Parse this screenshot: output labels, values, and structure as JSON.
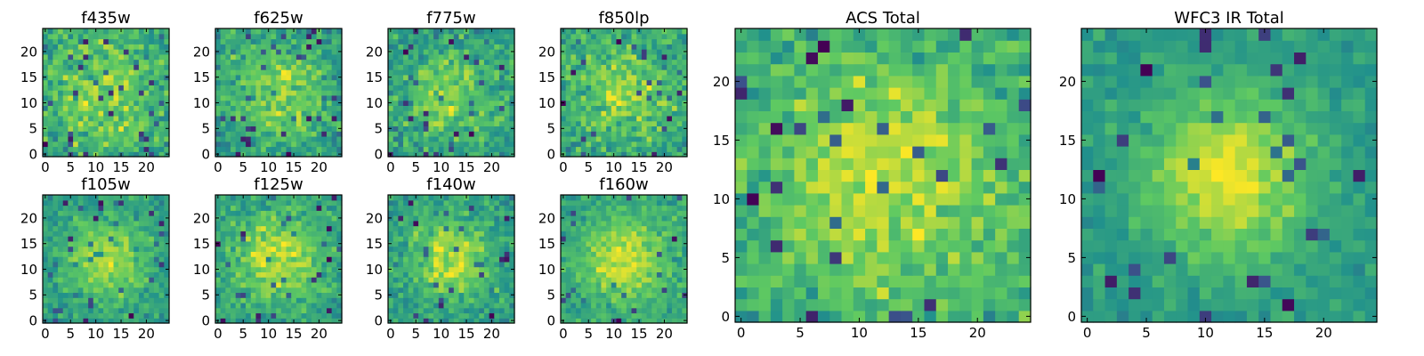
{
  "figure": {
    "background": "#ffffff"
  },
  "colormap": {
    "name": "viridis",
    "stops": [
      "#440154",
      "#3b528b",
      "#21918c",
      "#5ec962",
      "#fde725"
    ]
  },
  "chart_data": [
    {
      "type": "heatmap",
      "title": "f435w",
      "grid_size": 25,
      "xticks": [
        "0",
        "5",
        "10",
        "15",
        "20"
      ],
      "yticks": [
        "0",
        "5",
        "10",
        "15",
        "20"
      ],
      "center": [
        12,
        12
      ],
      "peak": 0.35,
      "width": 8,
      "noise": 0.55,
      "seed": 11,
      "style": "small"
    },
    {
      "type": "heatmap",
      "title": "f625w",
      "grid_size": 25,
      "xticks": [
        "0",
        "5",
        "10",
        "15",
        "20"
      ],
      "yticks": [
        "0",
        "5",
        "10",
        "15",
        "20"
      ],
      "center": [
        12,
        12
      ],
      "peak": 0.5,
      "width": 7,
      "noise": 0.55,
      "seed": 23,
      "style": "small"
    },
    {
      "type": "heatmap",
      "title": "f775w",
      "grid_size": 25,
      "xticks": [
        "0",
        "5",
        "10",
        "15",
        "20"
      ],
      "yticks": [
        "0",
        "5",
        "10",
        "15",
        "20"
      ],
      "center": [
        12,
        12
      ],
      "peak": 0.45,
      "width": 7,
      "noise": 0.55,
      "seed": 37,
      "style": "small"
    },
    {
      "type": "heatmap",
      "title": "f850lp",
      "grid_size": 25,
      "xticks": [
        "0",
        "5",
        "10",
        "15",
        "20"
      ],
      "yticks": [
        "0",
        "5",
        "10",
        "15",
        "20"
      ],
      "center": [
        12,
        12
      ],
      "peak": 0.4,
      "width": 7,
      "noise": 0.55,
      "seed": 41,
      "style": "small"
    },
    {
      "type": "heatmap",
      "title": "f105w",
      "grid_size": 25,
      "xticks": [
        "0",
        "5",
        "10",
        "15",
        "20"
      ],
      "yticks": [
        "0",
        "5",
        "10",
        "15",
        "20"
      ],
      "center": [
        12,
        12
      ],
      "peak": 0.55,
      "width": 6,
      "noise": 0.45,
      "seed": 53,
      "style": "small"
    },
    {
      "type": "heatmap",
      "title": "f125w",
      "grid_size": 25,
      "xticks": [
        "0",
        "5",
        "10",
        "15",
        "20"
      ],
      "yticks": [
        "0",
        "5",
        "10",
        "15",
        "20"
      ],
      "center": [
        12,
        12
      ],
      "peak": 0.55,
      "width": 6,
      "noise": 0.45,
      "seed": 67,
      "style": "small"
    },
    {
      "type": "heatmap",
      "title": "f140w",
      "grid_size": 25,
      "xticks": [
        "0",
        "5",
        "10",
        "15",
        "20"
      ],
      "yticks": [
        "0",
        "5",
        "10",
        "15",
        "20"
      ],
      "center": [
        12,
        12
      ],
      "peak": 0.6,
      "width": 5,
      "noise": 0.45,
      "seed": 71,
      "style": "small"
    },
    {
      "type": "heatmap",
      "title": "f160w",
      "grid_size": 25,
      "xticks": [
        "0",
        "5",
        "10",
        "15",
        "20"
      ],
      "yticks": [
        "0",
        "5",
        "10",
        "15",
        "20"
      ],
      "center": [
        12,
        12
      ],
      "peak": 0.65,
      "width": 5,
      "noise": 0.45,
      "seed": 83,
      "style": "small"
    },
    {
      "type": "heatmap",
      "title": "ACS Total",
      "grid_size": 25,
      "xticks": [
        "0",
        "5",
        "10",
        "15",
        "20"
      ],
      "yticks": [
        "0",
        "5",
        "10",
        "15",
        "20"
      ],
      "center": [
        12,
        12
      ],
      "peak": 0.4,
      "width": 7,
      "noise": 0.4,
      "seed": 97,
      "style": "large"
    },
    {
      "type": "heatmap",
      "title": "WFC3 IR Total",
      "grid_size": 25,
      "xticks": [
        "0",
        "5",
        "10",
        "15",
        "20"
      ],
      "yticks": [
        "0",
        "5",
        "10",
        "15",
        "20"
      ],
      "center": [
        12,
        12
      ],
      "peak": 0.7,
      "width": 5,
      "noise": 0.3,
      "seed": 101,
      "style": "large"
    }
  ]
}
